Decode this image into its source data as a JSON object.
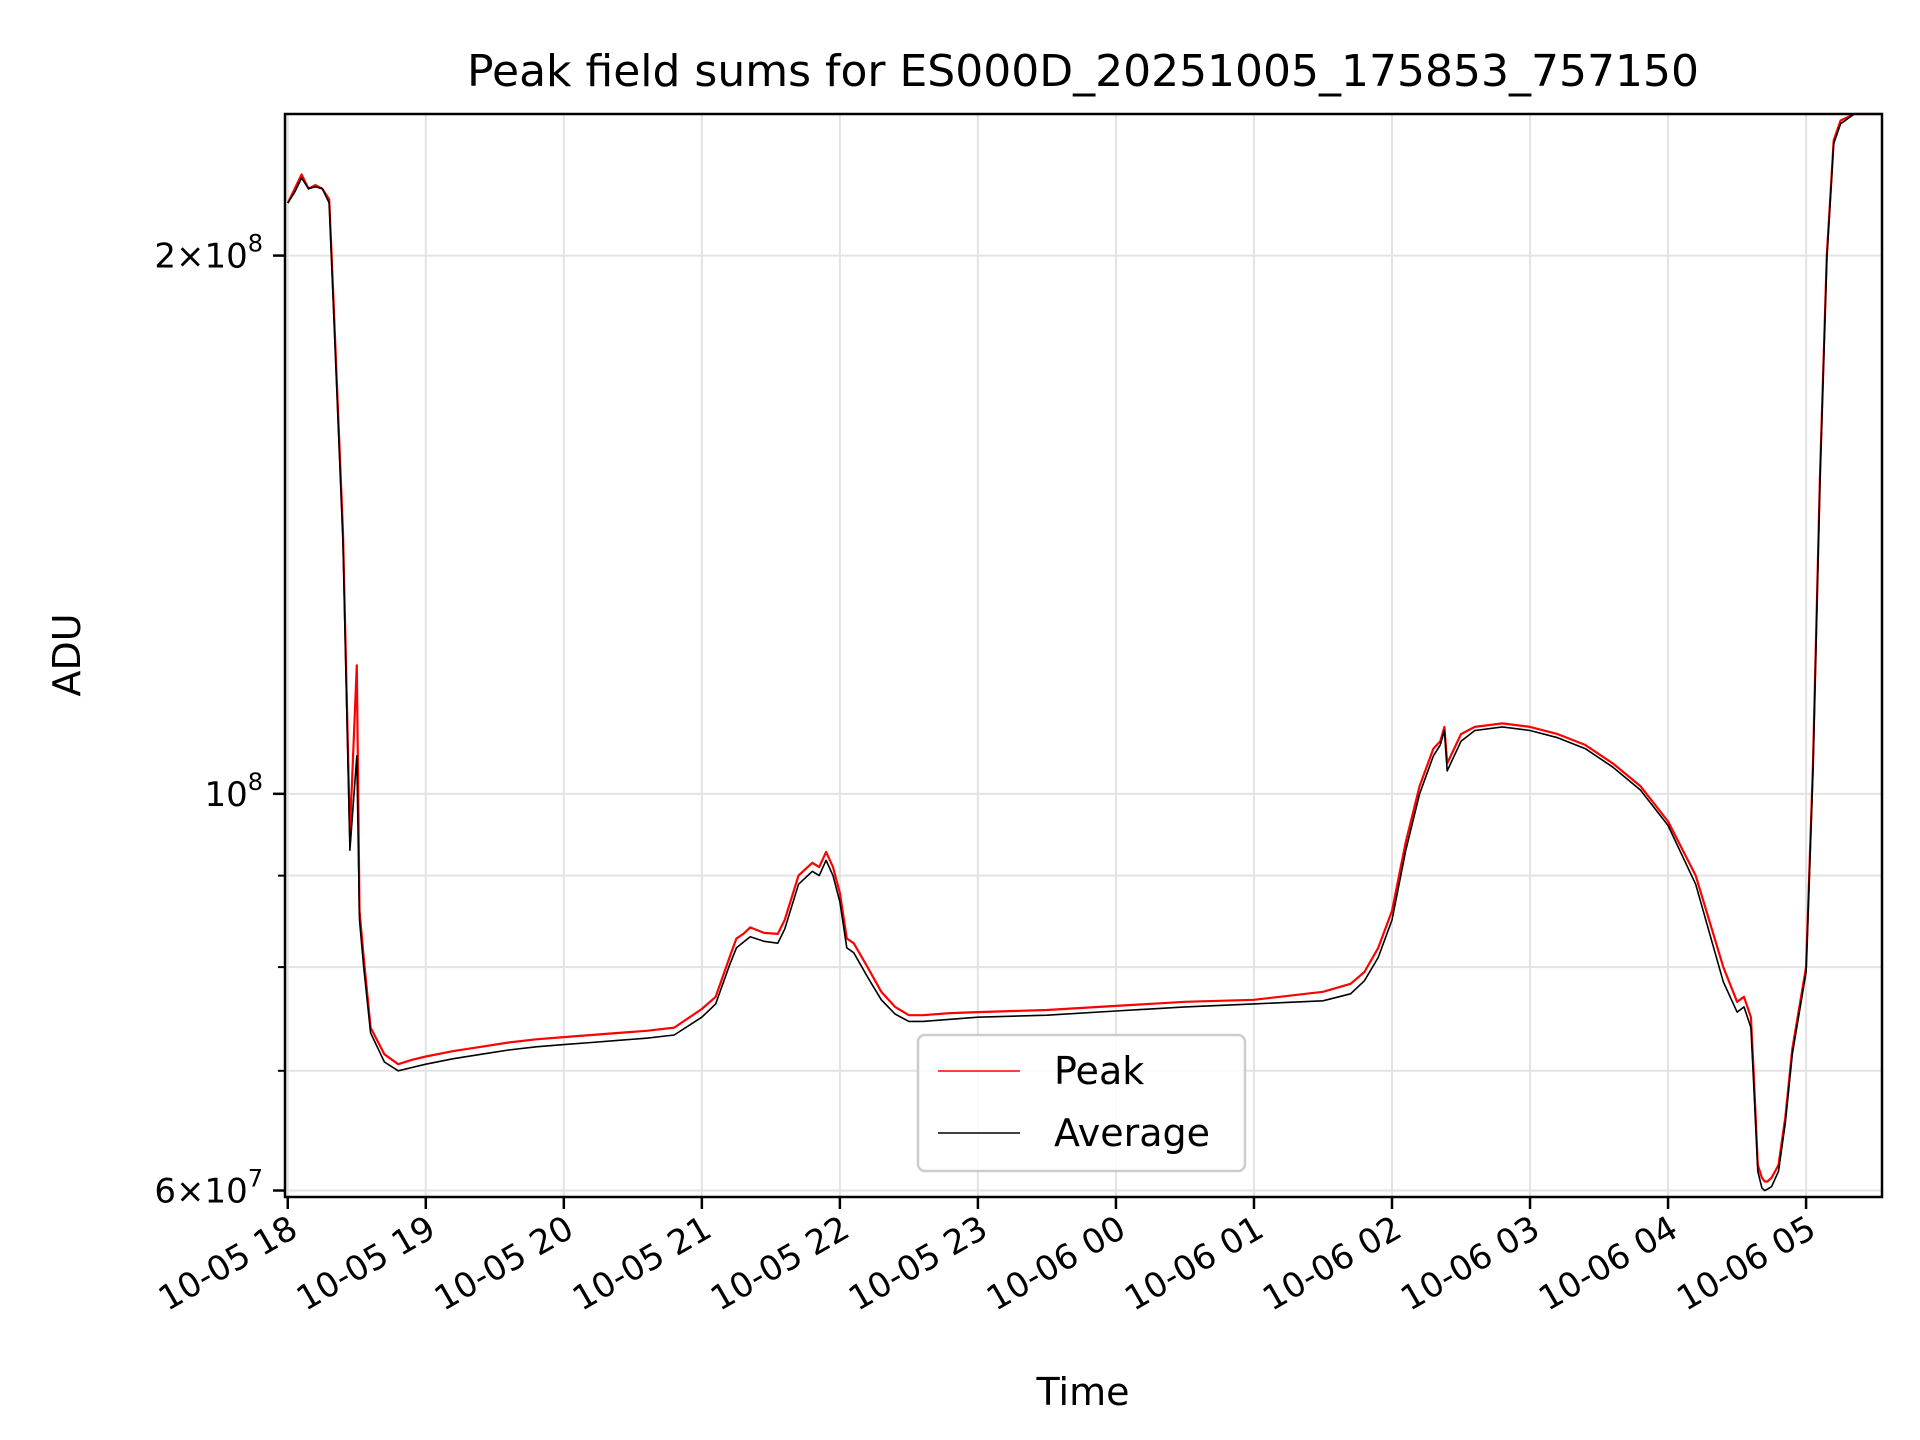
{
  "chart_data": {
    "type": "line",
    "title": "Peak field sums for ES000D_20251005_175853_757150",
    "xlabel": "Time",
    "ylabel": "ADU",
    "yscale": "log",
    "ylim": [
      59500000,
      240000000
    ],
    "xlim_hours": [
      -0.02,
      11.55
    ],
    "grid": true,
    "legend_location": "lower center",
    "x_ticks": [
      {
        "label": "10-05 18",
        "hour": 0
      },
      {
        "label": "10-05 19",
        "hour": 1
      },
      {
        "label": "10-05 20",
        "hour": 2
      },
      {
        "label": "10-05 21",
        "hour": 3
      },
      {
        "label": "10-05 22",
        "hour": 4
      },
      {
        "label": "10-05 23",
        "hour": 5
      },
      {
        "label": "10-06 00",
        "hour": 6
      },
      {
        "label": "10-06 01",
        "hour": 7
      },
      {
        "label": "10-06 02",
        "hour": 8
      },
      {
        "label": "10-06 03",
        "hour": 9
      },
      {
        "label": "10-06 04",
        "hour": 10
      },
      {
        "label": "10-06 05",
        "hour": 11
      }
    ],
    "y_ticks": [
      {
        "base": "6",
        "exp": "7",
        "value": 60000000
      },
      {
        "base": "",
        "exp": "8",
        "value": 100000000
      },
      {
        "base": "2",
        "exp": "8",
        "value": 200000000
      }
    ],
    "y_minor_ticks": [
      70000000,
      80000000,
      90000000
    ],
    "hours": [
      0,
      0.05,
      0.1,
      0.15,
      0.2,
      0.25,
      0.3,
      0.33,
      0.4,
      0.45,
      0.5,
      0.52,
      0.55,
      0.6,
      0.7,
      0.8,
      0.9,
      1.0,
      1.2,
      1.4,
      1.6,
      1.8,
      2.0,
      2.2,
      2.4,
      2.6,
      2.8,
      3.0,
      3.1,
      3.2,
      3.25,
      3.3,
      3.35,
      3.45,
      3.55,
      3.6,
      3.7,
      3.8,
      3.85,
      3.9,
      3.95,
      4.0,
      4.05,
      4.1,
      4.2,
      4.3,
      4.4,
      4.5,
      4.6,
      4.8,
      5.0,
      5.5,
      6.0,
      6.5,
      7.0,
      7.5,
      7.7,
      7.8,
      7.9,
      8.0,
      8.1,
      8.2,
      8.3,
      8.35,
      8.38,
      8.4,
      8.5,
      8.6,
      8.8,
      9.0,
      9.2,
      9.4,
      9.6,
      9.8,
      10.0,
      10.2,
      10.4,
      10.5,
      10.55,
      10.6,
      10.62,
      10.65,
      10.68,
      10.7,
      10.72,
      10.75,
      10.8,
      10.85,
      10.9,
      11.0,
      11.05,
      11.1,
      11.15,
      11.2,
      11.25,
      11.3,
      11.35,
      11.4,
      11.5,
      11.55
    ],
    "series": [
      {
        "name": "Peak",
        "color": "#ff0000",
        "values": [
          214000000,
          218000000,
          222000000,
          218000000,
          219000000,
          218000000,
          215000000,
          190000000,
          140000000,
          95000000,
          118000000,
          86000000,
          81000000,
          74000000,
          71500000,
          70600000,
          71000000,
          71300000,
          71800000,
          72200000,
          72600000,
          72900000,
          73100000,
          73300000,
          73500000,
          73700000,
          74000000,
          75800000,
          77000000,
          81000000,
          83000000,
          83500000,
          84200000,
          83600000,
          83500000,
          85000000,
          90000000,
          91500000,
          91000000,
          92800000,
          91000000,
          88000000,
          83000000,
          82500000,
          80000000,
          77500000,
          76000000,
          75200000,
          75200000,
          75400000,
          75500000,
          75700000,
          76100000,
          76500000,
          76700000,
          77500000,
          78300000,
          79500000,
          82000000,
          86000000,
          94000000,
          101000000,
          106000000,
          107000000,
          109000000,
          104000000,
          108000000,
          109000000,
          109500000,
          109000000,
          108000000,
          106500000,
          104000000,
          101000000,
          96500000,
          90000000,
          80000000,
          76500000,
          77000000,
          75000000,
          70000000,
          62000000,
          61000000,
          60700000,
          60700000,
          61000000,
          62000000,
          66000000,
          72000000,
          80000000,
          104000000,
          150000000,
          200000000,
          232000000,
          238000000,
          239000000,
          240000000,
          240000000,
          240000000,
          240000000
        ]
      },
      {
        "name": "Average",
        "color": "#000000",
        "values": [
          214000000,
          217000000,
          221000000,
          218000000,
          218500000,
          218000000,
          214000000,
          188000000,
          138000000,
          93000000,
          105000000,
          85000000,
          80000000,
          73500000,
          70800000,
          70000000,
          70300000,
          70600000,
          71100000,
          71500000,
          71900000,
          72200000,
          72400000,
          72600000,
          72800000,
          73000000,
          73300000,
          75000000,
          76300000,
          80200000,
          82000000,
          82600000,
          83200000,
          82700000,
          82500000,
          84000000,
          89000000,
          90500000,
          90000000,
          91800000,
          90000000,
          87000000,
          82000000,
          81500000,
          79000000,
          76700000,
          75300000,
          74600000,
          74600000,
          74800000,
          75000000,
          75200000,
          75600000,
          76000000,
          76300000,
          76600000,
          77300000,
          78600000,
          81000000,
          85000000,
          93000000,
          100000000,
          105000000,
          106500000,
          108500000,
          103000000,
          107000000,
          108500000,
          109000000,
          108500000,
          107500000,
          106000000,
          103500000,
          100500000,
          96000000,
          89000000,
          78500000,
          75500000,
          76000000,
          74000000,
          69000000,
          61500000,
          60200000,
          60000000,
          60100000,
          60300000,
          61500000,
          65500000,
          71500000,
          79500000,
          103000000,
          149000000,
          199000000,
          231000000,
          237000000,
          238500000,
          240000000,
          240000000,
          240000000,
          240000000
        ]
      }
    ]
  }
}
